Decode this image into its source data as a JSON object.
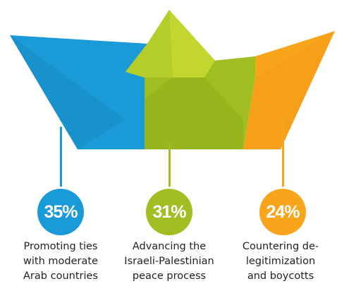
{
  "chart_data": {
    "type": "pie",
    "categories": [
      "Promoting ties with moderate Arab countries",
      "Advancing the Israeli-Palestinian peace process",
      "Countering de-legitimization and boycotts"
    ],
    "values": [
      35,
      31,
      24
    ],
    "value_labels": [
      "35%",
      "31%",
      "24%"
    ],
    "label_lines": [
      [
        "Promoting ties",
        "with moderate",
        "Arab countries"
      ],
      [
        "Advancing the",
        "Israeli-Palestinian",
        "peace process"
      ],
      [
        "Countering de-",
        "legitimization",
        "and boycotts"
      ]
    ],
    "colors": [
      "#1a9ad6",
      "#9fbe22",
      "#f9a51b"
    ],
    "title": "",
    "legend": "none"
  }
}
